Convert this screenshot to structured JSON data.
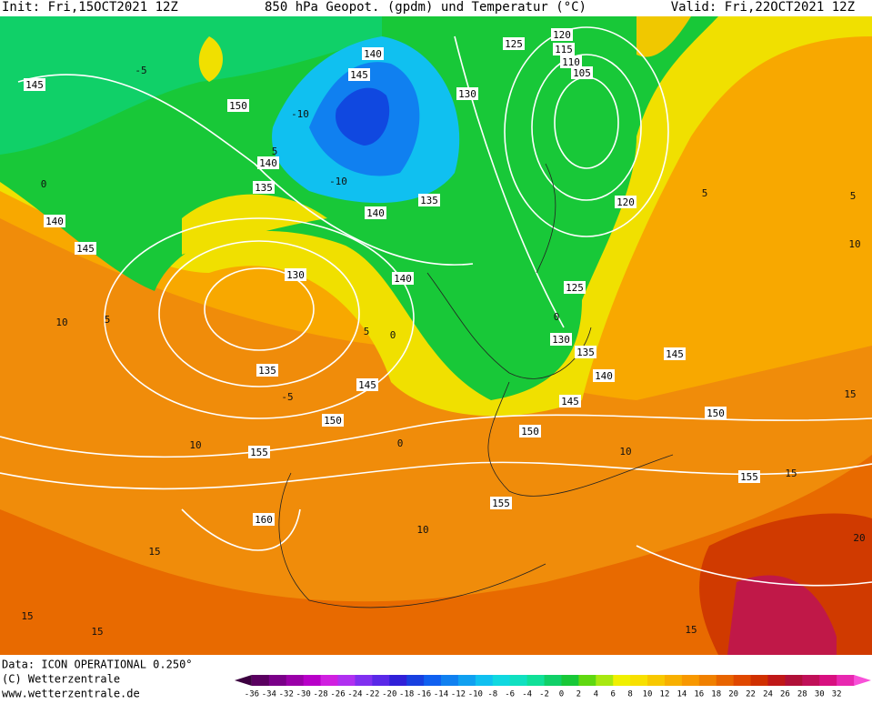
{
  "header": {
    "init": "Init: Fri,15OCT2021 12Z",
    "title": "850 hPa Geopot. (gpdm) und Temperatur (°C)",
    "valid": "Valid: Fri,22OCT2021 12Z"
  },
  "footer": {
    "data": "Data: ICON OPERATIONAL 0.250°",
    "copyright": "(C) Wetterzentrale",
    "url": "www.wetterzentrale.de"
  },
  "colorbar": {
    "labels": [
      -36,
      -34,
      -32,
      -30,
      -28,
      -26,
      -24,
      -22,
      -20,
      -18,
      -16,
      -14,
      -12,
      -10,
      -8,
      -6,
      -4,
      -2,
      0,
      2,
      4,
      6,
      8,
      10,
      12,
      14,
      16,
      18,
      20,
      22,
      24,
      26,
      28,
      30,
      32
    ],
    "colors": [
      "#3c0040",
      "#5a0060",
      "#7a0088",
      "#9a00a8",
      "#b800c8",
      "#d020e0",
      "#b030f0",
      "#8030f0",
      "#5a28e8",
      "#3020d8",
      "#1840e0",
      "#1060f0",
      "#1080f0",
      "#10a0f0",
      "#10c0f0",
      "#10d8e0",
      "#10e0c0",
      "#10e098",
      "#10d068",
      "#18c838",
      "#60d810",
      "#a8e810",
      "#f0f000",
      "#f8e000",
      "#f8c800",
      "#f8b000",
      "#f89800",
      "#f08000",
      "#e86400",
      "#e04800",
      "#d03000",
      "#c01818",
      "#b01038",
      "#c01058",
      "#d81080",
      "#e828b0",
      "#f850d8"
    ]
  },
  "geopotential_labels": [
    "140",
    "145",
    "125",
    "120",
    "115",
    "110",
    "105",
    "130",
    "145",
    "150",
    "140",
    "135",
    "135",
    "120",
    "140",
    "145",
    "140",
    "130",
    "140",
    "125",
    "130",
    "135",
    "140",
    "145",
    "135",
    "145",
    "145",
    "150",
    "150",
    "150",
    "155",
    "155",
    "155",
    "160"
  ],
  "temperature_labels": [
    "-5",
    "-10",
    "0",
    "-10",
    "5",
    "0",
    "-5",
    "10",
    "5",
    "5",
    "0",
    "5",
    "0",
    "10",
    "10",
    "10",
    "15",
    "15",
    "15",
    "20",
    "15",
    "15",
    "5",
    "10",
    "15"
  ]
}
